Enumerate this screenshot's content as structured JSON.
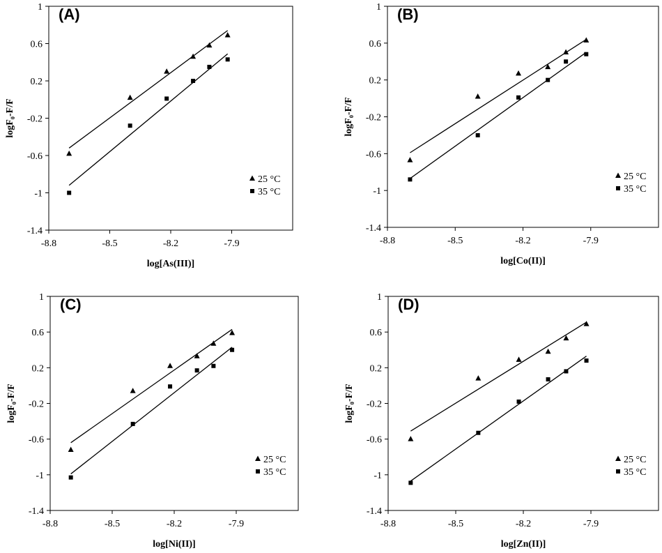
{
  "chart_data": [
    {
      "type": "scatter",
      "panel_label": "(A)",
      "xlabel": "log[As(III)]",
      "ylabel": "logF₀-F/F",
      "xlim": [
        -8.8,
        -7.6
      ],
      "ylim": [
        -1.4,
        1
      ],
      "xticks": [
        "-8.8",
        "-8.5",
        "-8.2",
        "-7.9"
      ],
      "yticks": [
        "-1.4",
        "-1",
        "-0.6",
        "-0.2",
        "0.2",
        "0.6",
        "1"
      ],
      "grid": false,
      "legend_position": "bottom-right",
      "series": [
        {
          "name": "25 °C",
          "marker": "triangle",
          "x": [
            -8.7,
            -8.4,
            -8.22,
            -8.09,
            -8.01,
            -7.92
          ],
          "y": [
            -0.58,
            0.02,
            0.3,
            0.46,
            0.58,
            0.69
          ],
          "fit": [
            [
              -8.7,
              -0.52
            ],
            [
              -7.92,
              0.74
            ]
          ]
        },
        {
          "name": "35 °C",
          "marker": "square",
          "x": [
            -8.7,
            -8.4,
            -8.22,
            -8.09,
            -8.01,
            -7.92
          ],
          "y": [
            -1.0,
            -0.28,
            0.01,
            0.2,
            0.35,
            0.43
          ],
          "fit": [
            [
              -8.7,
              -0.92
            ],
            [
              -7.92,
              0.49
            ]
          ]
        }
      ]
    },
    {
      "type": "scatter",
      "panel_label": "(B)",
      "xlabel": "log[Co(II)]",
      "ylabel": "logF₀-F/F",
      "xlim": [
        -8.8,
        -7.6
      ],
      "ylim": [
        -1.4,
        1
      ],
      "xticks": [
        "-8.8",
        "-8.5",
        "-8.2",
        "-7.9"
      ],
      "yticks": [
        "-1.4",
        "-1",
        "-0.6",
        "-0.2",
        "0.2",
        "0.6",
        "1"
      ],
      "grid": false,
      "legend_position": "bottom-right",
      "series": [
        {
          "name": "25 °C",
          "marker": "triangle",
          "x": [
            -8.7,
            -8.4,
            -8.22,
            -8.09,
            -8.01,
            -7.92
          ],
          "y": [
            -0.67,
            0.02,
            0.27,
            0.34,
            0.5,
            0.63
          ],
          "fit": [
            [
              -8.7,
              -0.59
            ],
            [
              -7.92,
              0.64
            ]
          ]
        },
        {
          "name": "35 °C",
          "marker": "square",
          "x": [
            -8.7,
            -8.4,
            -8.22,
            -8.09,
            -8.01,
            -7.92
          ],
          "y": [
            -0.88,
            -0.4,
            0.01,
            0.2,
            0.4,
            0.48
          ],
          "fit": [
            [
              -8.7,
              -0.87
            ],
            [
              -7.92,
              0.5
            ]
          ]
        }
      ]
    },
    {
      "type": "scatter",
      "panel_label": "(C)",
      "xlabel": "log[Ni(II)]",
      "ylabel": "logF₀-F/F",
      "xlim": [
        -8.8,
        -7.6
      ],
      "ylim": [
        -1.4,
        1
      ],
      "xticks": [
        "-8.8",
        "-8.5",
        "-8.2",
        "-7.9"
      ],
      "yticks": [
        "-1.4",
        "-1",
        "-0.6",
        "-0.2",
        "0.2",
        "0.6",
        "1"
      ],
      "grid": false,
      "legend_position": "bottom-right",
      "series": [
        {
          "name": "25 °C",
          "marker": "triangle",
          "x": [
            -8.7,
            -8.4,
            -8.22,
            -8.09,
            -8.01,
            -7.92
          ],
          "y": [
            -0.72,
            -0.06,
            0.22,
            0.33,
            0.47,
            0.59
          ],
          "fit": [
            [
              -8.7,
              -0.64
            ],
            [
              -7.92,
              0.63
            ]
          ]
        },
        {
          "name": "35 °C",
          "marker": "square",
          "x": [
            -8.7,
            -8.4,
            -8.22,
            -8.09,
            -8.01,
            -7.92
          ],
          "y": [
            -1.03,
            -0.43,
            -0.01,
            0.17,
            0.22,
            0.4
          ],
          "fit": [
            [
              -8.7,
              -0.99
            ],
            [
              -7.92,
              0.43
            ]
          ]
        }
      ]
    },
    {
      "type": "scatter",
      "panel_label": "(D)",
      "xlabel": "log[Zn(II)]",
      "ylabel": "logF₀-F/F",
      "xlim": [
        -8.8,
        -7.6
      ],
      "ylim": [
        -1.4,
        1
      ],
      "xticks": [
        "-8.8",
        "-8.5",
        "-8.2",
        "-7.9"
      ],
      "yticks": [
        "-1.4",
        "-1",
        "-0.6",
        "-0.2",
        "0.2",
        "0.6",
        "1"
      ],
      "grid": false,
      "legend_position": "bottom-right",
      "series": [
        {
          "name": "25 °C",
          "marker": "triangle",
          "x": [
            -8.7,
            -8.4,
            -8.22,
            -8.09,
            -8.01,
            -7.92
          ],
          "y": [
            -0.6,
            0.08,
            0.29,
            0.38,
            0.53,
            0.69
          ],
          "fit": [
            [
              -8.7,
              -0.51
            ],
            [
              -7.92,
              0.71
            ]
          ]
        },
        {
          "name": "35 °C",
          "marker": "square",
          "x": [
            -8.7,
            -8.4,
            -8.22,
            -8.09,
            -8.01,
            -7.92
          ],
          "y": [
            -1.09,
            -0.53,
            -0.18,
            0.07,
            0.16,
            0.28
          ],
          "fit": [
            [
              -8.7,
              -1.07
            ],
            [
              -7.92,
              0.33
            ]
          ]
        }
      ]
    }
  ]
}
